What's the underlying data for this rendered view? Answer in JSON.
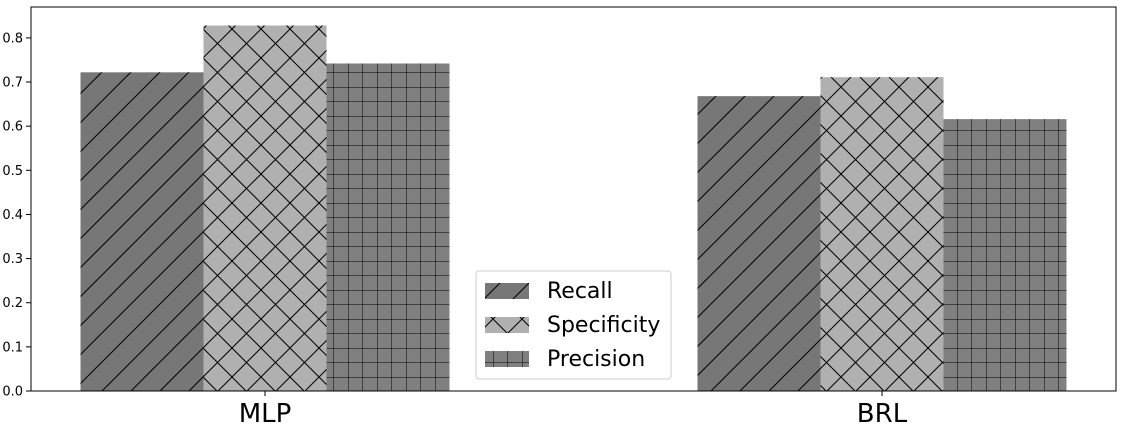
{
  "chart_data": {
    "type": "bar",
    "categories": [
      "MLP",
      "BRL"
    ],
    "series": [
      {
        "name": "Recall",
        "values": [
          0.722,
          0.668
        ],
        "color": "#777777",
        "hatch": "diagonal"
      },
      {
        "name": "Specificity",
        "values": [
          0.828,
          0.711
        ],
        "color": "#b0b0b0",
        "hatch": "cross-diagonal"
      },
      {
        "name": "Precision",
        "values": [
          0.742,
          0.616
        ],
        "color": "#808080",
        "hatch": "grid"
      }
    ],
    "yticks": [
      "0.0",
      "0.1",
      "0.2",
      "0.3",
      "0.4",
      "0.5",
      "0.6",
      "0.7",
      "0.8"
    ],
    "ylim": [
      0,
      0.87
    ],
    "grid": false,
    "legend_position": "lower-center"
  }
}
